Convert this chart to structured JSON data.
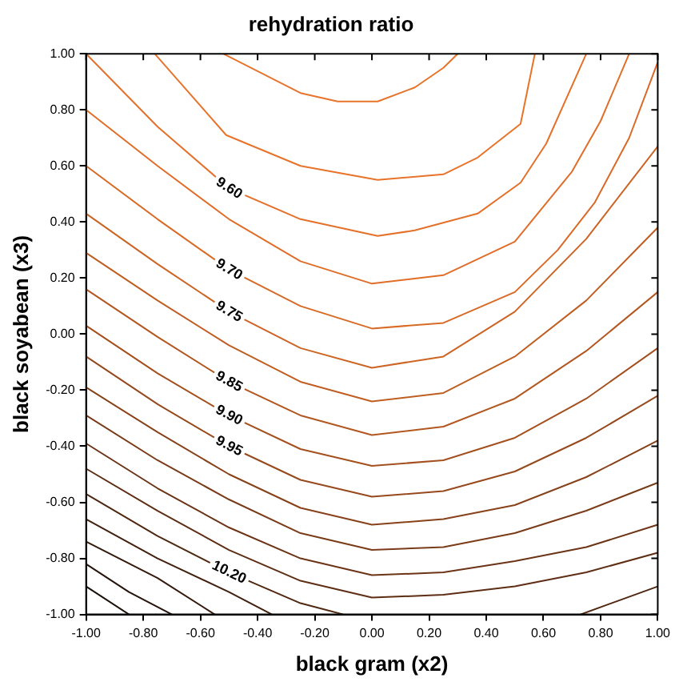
{
  "chart_data": {
    "type": "line",
    "title": "rehydration ratio",
    "xlabel": "black gram (x2)",
    "ylabel": "black soyabean (x3)",
    "xlim": [
      -1,
      1
    ],
    "ylim": [
      -1,
      1
    ],
    "xticks": [
      {
        "value": -1,
        "label": "-1.00"
      },
      {
        "value": -0.8,
        "label": "-0.80"
      },
      {
        "value": -0.6,
        "label": "-0.60"
      },
      {
        "value": -0.4,
        "label": "-0.40"
      },
      {
        "value": -0.2,
        "label": "-0.20"
      },
      {
        "value": 0,
        "label": "0.00"
      },
      {
        "value": 0.2,
        "label": "0.20"
      },
      {
        "value": 0.4,
        "label": "0.40"
      },
      {
        "value": 0.6,
        "label": "0.60"
      },
      {
        "value": 0.8,
        "label": "0.80"
      },
      {
        "value": 1,
        "label": "1.00"
      }
    ],
    "yticks": [
      {
        "value": -1,
        "label": "-1.00"
      },
      {
        "value": -0.8,
        "label": "-0.80"
      },
      {
        "value": -0.6,
        "label": "-0.60"
      },
      {
        "value": -0.4,
        "label": "-0.40"
      },
      {
        "value": -0.2,
        "label": "-0.20"
      },
      {
        "value": 0,
        "label": "0.00"
      },
      {
        "value": 0.2,
        "label": "0.20"
      },
      {
        "value": 0.4,
        "label": "0.40"
      },
      {
        "value": 0.6,
        "label": "0.60"
      },
      {
        "value": 0.8,
        "label": "0.80"
      },
      {
        "value": 1,
        "label": "1.00"
      }
    ],
    "marker": "none",
    "legend": false,
    "series": [
      {
        "color": "#e8732a",
        "x": [
          -0.52,
          -0.25,
          -0.12,
          0.02,
          0.15,
          0.25,
          0.3
        ],
        "values": [
          1,
          0.86,
          0.83,
          0.83,
          0.88,
          0.95,
          1
        ]
      },
      {
        "color": "#e8732a",
        "x": [
          -0.76,
          -0.51,
          -0.25,
          0.02,
          0.25,
          0.37,
          0.52,
          0.57
        ],
        "values": [
          1,
          0.71,
          0.6,
          0.55,
          0.57,
          0.63,
          0.75,
          1
        ]
      },
      {
        "name": "9.60",
        "color": "#e5702a",
        "x": [
          -1,
          -0.75,
          -0.5,
          -0.25,
          0.02,
          0.15,
          0.37,
          0.52,
          0.61,
          0.75
        ],
        "values": [
          1,
          0.74,
          0.52,
          0.41,
          0.35,
          0.37,
          0.43,
          0.54,
          0.68,
          1
        ]
      },
      {
        "color": "#e06d28",
        "x": [
          -1,
          -0.75,
          -0.5,
          -0.25,
          0,
          0.25,
          0.5,
          0.7,
          0.8,
          0.9
        ],
        "values": [
          0.8,
          0.6,
          0.41,
          0.26,
          0.18,
          0.21,
          0.33,
          0.58,
          0.76,
          1
        ]
      },
      {
        "name": "9.70",
        "color": "#d86a26",
        "x": [
          -1,
          -0.75,
          -0.5,
          -0.25,
          0,
          0.25,
          0.5,
          0.65,
          0.78,
          0.9,
          1
        ],
        "values": [
          0.6,
          0.41,
          0.23,
          0.1,
          0.02,
          0.04,
          0.15,
          0.3,
          0.47,
          0.7,
          0.97
        ]
      },
      {
        "name": "9.75",
        "color": "#cc6424",
        "x": [
          -1,
          -0.75,
          -0.5,
          -0.25,
          0,
          0.25,
          0.5,
          0.75,
          1
        ],
        "values": [
          0.43,
          0.25,
          0.08,
          -0.05,
          -0.12,
          -0.08,
          0.08,
          0.34,
          0.67
        ]
      },
      {
        "color": "#c05e22",
        "x": [
          -1,
          -0.75,
          -0.5,
          -0.25,
          0,
          0.25,
          0.5,
          0.75,
          1
        ],
        "values": [
          0.29,
          0.12,
          -0.04,
          -0.17,
          -0.24,
          -0.21,
          -0.08,
          0.12,
          0.38
        ]
      },
      {
        "name": "9.85",
        "color": "#b25720",
        "x": [
          -1,
          -0.75,
          -0.5,
          -0.25,
          0,
          0.25,
          0.5,
          0.75,
          1
        ],
        "values": [
          0.16,
          -0.01,
          -0.17,
          -0.29,
          -0.36,
          -0.33,
          -0.23,
          -0.06,
          0.15
        ]
      },
      {
        "name": "9.90",
        "color": "#a4501e",
        "x": [
          -1,
          -0.75,
          -0.5,
          -0.25,
          0,
          0.25,
          0.5,
          0.75,
          1
        ],
        "values": [
          0.03,
          -0.14,
          -0.29,
          -0.41,
          -0.47,
          -0.45,
          -0.37,
          -0.23,
          -0.05
        ]
      },
      {
        "name": "9.95",
        "color": "#96491c",
        "x": [
          -1,
          -0.75,
          -0.5,
          -0.25,
          0,
          0.25,
          0.5,
          0.75,
          1
        ],
        "values": [
          -0.08,
          -0.25,
          -0.4,
          -0.52,
          -0.58,
          -0.56,
          -0.49,
          -0.37,
          -0.22
        ]
      },
      {
        "color": "#88421a",
        "x": [
          -1,
          -0.75,
          -0.5,
          -0.25,
          0,
          0.25,
          0.5,
          0.75,
          1
        ],
        "values": [
          -0.19,
          -0.35,
          -0.5,
          -0.62,
          -0.68,
          -0.66,
          -0.61,
          -0.51,
          -0.38
        ]
      },
      {
        "color": "#7a3b18",
        "x": [
          -1,
          -0.75,
          -0.5,
          -0.25,
          0,
          0.25,
          0.5,
          0.75,
          1
        ],
        "values": [
          -0.29,
          -0.45,
          -0.59,
          -0.71,
          -0.77,
          -0.76,
          -0.71,
          -0.63,
          -0.53
        ]
      },
      {
        "color": "#6c3416",
        "x": [
          -1,
          -0.75,
          -0.5,
          -0.25,
          0,
          0.25,
          0.5,
          0.75,
          1
        ],
        "values": [
          -0.39,
          -0.55,
          -0.69,
          -0.8,
          -0.86,
          -0.85,
          -0.81,
          -0.76,
          -0.68
        ]
      },
      {
        "color": "#5e2e14",
        "x": [
          -1,
          -0.75,
          -0.5,
          -0.25,
          0,
          0.25,
          0.5,
          0.75,
          1
        ],
        "values": [
          -0.48,
          -0.63,
          -0.77,
          -0.88,
          -0.94,
          -0.93,
          -0.9,
          -0.85,
          -0.78
        ]
      },
      {
        "name": "10.20",
        "color": "#502812",
        "x": [
          -1,
          -0.75,
          -0.5,
          -0.25,
          -0.1,
          0.3,
          0.73,
          1
        ],
        "values": [
          -0.57,
          -0.72,
          -0.85,
          -0.96,
          -1,
          null,
          -1,
          -0.9
        ]
      },
      {
        "color": "#42200e",
        "x": [
          -1,
          -0.75,
          -0.5,
          -0.35
        ],
        "values": [
          -0.66,
          -0.8,
          -0.92,
          -1
        ]
      },
      {
        "color": "#341a0c",
        "x": [
          -1,
          -0.75,
          -0.55
        ],
        "values": [
          -0.74,
          -0.87,
          -1
        ]
      },
      {
        "color": "#26140a",
        "x": [
          -1,
          -0.85,
          -0.7
        ],
        "values": [
          -0.82,
          -0.92,
          -1
        ]
      },
      {
        "color": "#1a1008",
        "x": [
          -1,
          -0.85
        ],
        "values": [
          -0.9,
          -1
        ]
      }
    ]
  }
}
